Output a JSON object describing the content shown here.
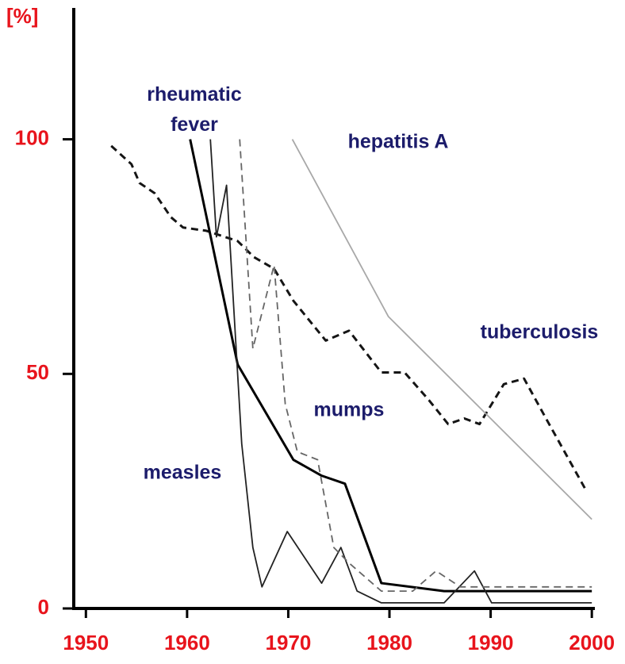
{
  "chart_data": {
    "type": "line",
    "ylabel": "[%]",
    "xlim": [
      1948.8,
      2000.3
    ],
    "ylim": [
      0,
      128
    ],
    "xticks": [
      1950,
      1960,
      1970,
      1980,
      1990,
      2000
    ],
    "yticks": [
      0,
      50,
      100
    ],
    "series": [
      {
        "name": "tuberculosis",
        "color": "#151515",
        "dashed": true,
        "linewidth": 3,
        "x": [
          1952.5,
          1954.5,
          1955.3,
          1956.8,
          1958.4,
          1959.6,
          1961.9,
          1965.0,
          1966.6,
          1968.6,
          1970.5,
          1973.7,
          1976.0,
          1979.2,
          1981.5,
          1983.9,
          1985.8,
          1987.4,
          1988.9,
          1991.3,
          1993.3,
          1995.6,
          1999.5
        ],
        "values": [
          98.6,
          94.7,
          90.7,
          88.5,
          83.4,
          81.2,
          80.5,
          78.3,
          74.9,
          72.4,
          65.6,
          57.1,
          59.2,
          50.3,
          50.3,
          44.4,
          39.3,
          40.5,
          39.3,
          47.8,
          49,
          40,
          24.9
        ]
      },
      {
        "name": "rheumatic fever",
        "color": "#000000",
        "dashed": false,
        "linewidth": 3,
        "x": [
          1960.3,
          1965.0,
          1970.5,
          1973.3,
          1975.6,
          1979.2,
          1985.4,
          2000
        ],
        "values": [
          100,
          52,
          31.7,
          28.3,
          26.6,
          5.4,
          3.7,
          3.7
        ]
      },
      {
        "name": "measles",
        "color": "#222222",
        "dashed": false,
        "linewidth": 1.8,
        "x": [
          1962.3,
          1962.9,
          1963.9,
          1965.4,
          1966.5,
          1967.4,
          1969.9,
          1973.3,
          1975.2,
          1976.8,
          1979.2,
          1985.4,
          1988.4,
          1990.1,
          2000
        ],
        "values": [
          100,
          79.2,
          90.2,
          35.1,
          13,
          4.6,
          16.4,
          5.4,
          13,
          3.7,
          1.2,
          1.2,
          8,
          1.2,
          1.2
        ]
      },
      {
        "name": "mumps",
        "color": "#666666",
        "dashed": true,
        "linewidth": 1.8,
        "x": [
          1965.2,
          1966.5,
          1968.6,
          1969.7,
          1970.9,
          1972.9,
          1974.5,
          1976.0,
          1979.2,
          1982.3,
          1984.6,
          1987.0,
          2000
        ],
        "values": [
          100,
          55.4,
          73.2,
          43.6,
          33.4,
          31.7,
          13,
          9.7,
          3.7,
          3.7,
          8,
          4.6,
          4.6
        ]
      },
      {
        "name": "hepatitis A",
        "color": "#a8a8a8",
        "dashed": false,
        "linewidth": 1.8,
        "x": [
          1970.4,
          1979.9,
          2000
        ],
        "values": [
          100,
          62.2,
          19
        ]
      }
    ]
  }
}
